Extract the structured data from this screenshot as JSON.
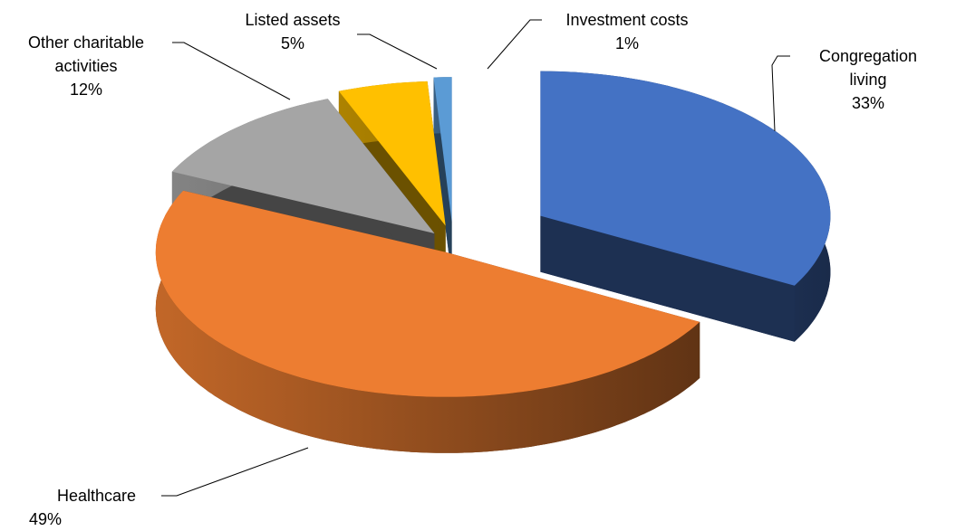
{
  "chart_data": {
    "type": "pie3d",
    "categories": [
      "Congregation living",
      "Healthcare",
      "Other charitable activities",
      "Listed assets",
      "Investment costs"
    ],
    "values": [
      33,
      49,
      12,
      5,
      1
    ],
    "value_labels": [
      "33%",
      "49%",
      "12%",
      "5%",
      "1%"
    ],
    "colors": [
      "#4472c4",
      "#ed7d31",
      "#a5a5a5",
      "#ffc000",
      "#5b9bd5"
    ]
  }
}
